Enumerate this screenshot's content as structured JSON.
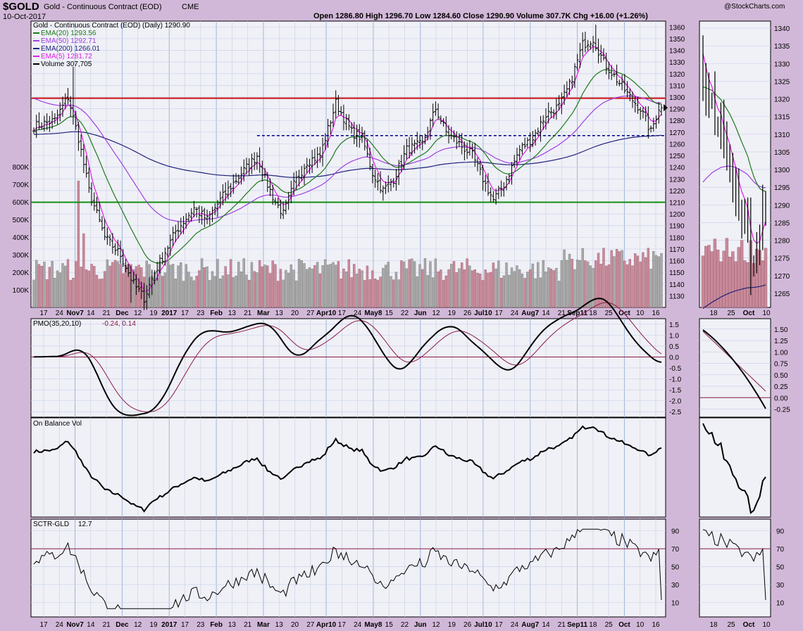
{
  "header": {
    "symbol": "$GOLD",
    "name": "Gold - Continuous Contract (EOD)",
    "exchange": "CME",
    "date": "10-Oct-2017",
    "watermark": "@StockCharts.com",
    "ohlc": "Open 1286.80  High 1296.70  Low 1284.60  Close 1290.90  Volume 307.7K  Chg +16.00 (+1.26%)"
  },
  "legend": {
    "main": "Gold - Continuous Contract (EOD) (Daily) 1290.90",
    "ema20": "EMA(20) 1293.56",
    "ema50": "EMA(50) 1292.71",
    "ema200": "EMA(200) 1266.01",
    "ema5": "EMA(5) 1281.72",
    "volume": "Volume 307,705"
  },
  "colors": {
    "ema20": "#1e7a1e",
    "ema50": "#a040e0",
    "ema200": "#20207a",
    "ema5": "#e020e0",
    "resist": "#d01010",
    "support": "#109010",
    "dashed": "#00008b"
  },
  "chart_data": [
    {
      "type": "line",
      "title": "Gold - Continuous Contract (EOD) (Daily)",
      "ylim": [
        1120,
        1365
      ],
      "yticks": [
        1130,
        1140,
        1150,
        1160,
        1170,
        1180,
        1190,
        1200,
        1210,
        1220,
        1230,
        1240,
        1250,
        1260,
        1270,
        1280,
        1290,
        1300,
        1310,
        1320,
        1330,
        1340,
        1350,
        1360
      ],
      "x_labels": [
        "17",
        "24",
        "Nov7",
        "14",
        "21",
        "Dec",
        "12",
        "19",
        "2017",
        "17",
        "23",
        "Feb",
        "13",
        "21",
        "Mar",
        "13",
        "20",
        "27",
        "Apr10",
        "17",
        "24",
        "May8",
        "15",
        "22",
        "Jun",
        "12",
        "19",
        "26",
        "Jul10",
        "17",
        "24",
        "Aug7",
        "14",
        "21",
        "Sep11",
        "18",
        "25",
        "Oct",
        "10",
        "16"
      ],
      "x_bold": [
        "Nov7",
        "Dec",
        "2017",
        "Feb",
        "Mar",
        "Apr10",
        "May8",
        "Jun",
        "Jul10",
        "Aug7",
        "Sep11",
        "Oct"
      ],
      "close_keypoints": [
        [
          0,
          1275
        ],
        [
          8,
          1280
        ],
        [
          13,
          1300
        ],
        [
          17,
          1265
        ],
        [
          21,
          1220
        ],
        [
          27,
          1180
        ],
        [
          33,
          1165
        ],
        [
          38,
          1140
        ],
        [
          42,
          1128
        ],
        [
          46,
          1150
        ],
        [
          54,
          1185
        ],
        [
          61,
          1205
        ],
        [
          66,
          1195
        ],
        [
          72,
          1215
        ],
        [
          78,
          1232
        ],
        [
          85,
          1250
        ],
        [
          88,
          1230
        ],
        [
          92,
          1210
        ],
        [
          95,
          1200
        ],
        [
          99,
          1225
        ],
        [
          104,
          1245
        ],
        [
          109,
          1250
        ],
        [
          115,
          1295
        ],
        [
          121,
          1270
        ],
        [
          125,
          1265
        ],
        [
          129,
          1235
        ],
        [
          133,
          1220
        ],
        [
          137,
          1230
        ],
        [
          142,
          1255
        ],
        [
          148,
          1260
        ],
        [
          153,
          1290
        ],
        [
          157,
          1270
        ],
        [
          162,
          1260
        ],
        [
          167,
          1250
        ],
        [
          172,
          1225
        ],
        [
          175,
          1212
        ],
        [
          179,
          1225
        ],
        [
          185,
          1255
        ],
        [
          190,
          1265
        ],
        [
          195,
          1285
        ],
        [
          200,
          1292
        ],
        [
          204,
          1310
        ],
        [
          209,
          1345
        ],
        [
          213,
          1350
        ],
        [
          217,
          1330
        ],
        [
          222,
          1315
        ],
        [
          227,
          1300
        ],
        [
          231,
          1290
        ],
        [
          235,
          1270
        ],
        [
          238,
          1291
        ]
      ],
      "horizontal_lines": [
        {
          "value": 1299,
          "color": "#d01010"
        },
        {
          "value": 1210,
          "color": "#109010"
        }
      ],
      "dashed_line": {
        "value": 1267,
        "from_index": 85
      },
      "volume_axis": {
        "ylim": [
          0,
          1000000
        ],
        "labels": [
          "100K",
          "200K",
          "300K",
          "400K",
          "500K",
          "600K",
          "700K",
          "800K"
        ]
      },
      "last_volume": 307705
    },
    {
      "type": "line",
      "title": "PMO(35,20,10)",
      "values_label": "-0.24, 0.14",
      "ylim": [
        -2.75,
        1.75
      ],
      "yticks": [
        -2.5,
        -2.0,
        -1.5,
        -1.0,
        -0.5,
        0.0,
        0.5,
        1.0,
        1.5
      ],
      "pmo_last": -0.24,
      "signal_last": 0.14
    },
    {
      "type": "line",
      "title": "On Balance Vol"
    },
    {
      "type": "line",
      "title": "SCTR-GLD",
      "value": 12.7,
      "ylim": [
        0,
        100
      ],
      "yticks": [
        10,
        30,
        50,
        70,
        90
      ],
      "hline": 70
    },
    {
      "type": "line",
      "title": "zoom-inset",
      "x_labels": [
        "18",
        "25",
        "Oct",
        "10"
      ],
      "price_yticks": [
        1265,
        1270,
        1275,
        1280,
        1285,
        1290,
        1295,
        1300,
        1305,
        1310,
        1315,
        1320,
        1325,
        1330,
        1335,
        1340
      ],
      "pmo_yticks": [
        -0.25,
        0.0,
        0.25,
        0.5,
        0.75,
        1.0,
        1.25,
        1.5
      ],
      "sctr_yticks": [
        10,
        30,
        50,
        70,
        90
      ]
    }
  ]
}
